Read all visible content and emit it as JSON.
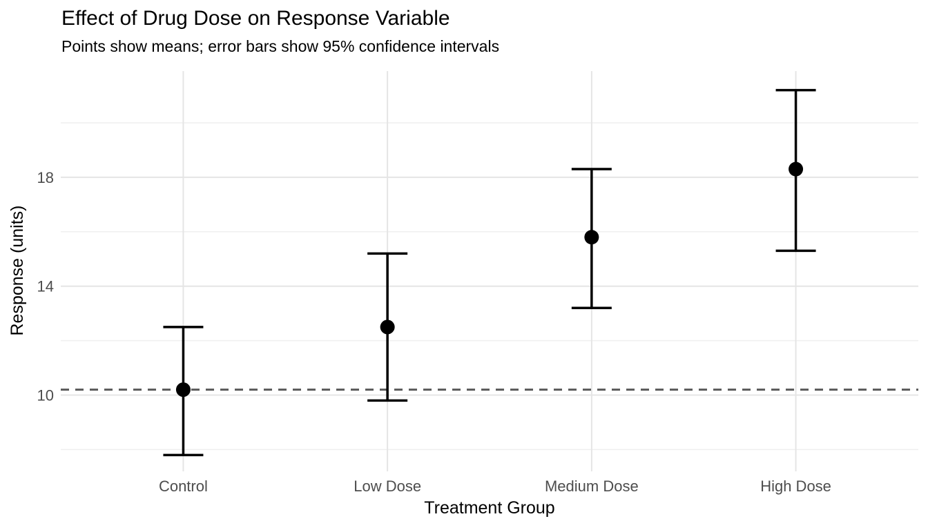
{
  "chart_data": {
    "type": "scatter",
    "title": "Effect of Drug Dose on Response Variable",
    "subtitle": "Points show means; error bars show 95% confidence intervals",
    "xlabel": "Treatment Group",
    "ylabel": "Response (units)",
    "categories": [
      "Control",
      "Low Dose",
      "Medium Dose",
      "High Dose"
    ],
    "series": [
      {
        "name": "mean",
        "values": [
          10.2,
          12.5,
          15.8,
          18.3
        ]
      },
      {
        "name": "ci_lower",
        "values": [
          7.8,
          9.8,
          13.2,
          15.3
        ]
      },
      {
        "name": "ci_upper",
        "values": [
          12.5,
          15.2,
          18.3,
          21.2
        ]
      }
    ],
    "reference_line": {
      "y": 10.2,
      "linetype": "dashed",
      "color": "#595959"
    },
    "ylim": [
      7.2,
      21.9
    ],
    "yticks_major": [
      10,
      14,
      18
    ],
    "yticks_minor": [
      8,
      12,
      16,
      20
    ],
    "grid": true,
    "legend": "none",
    "style": {
      "point_color": "#000000",
      "errorbar_color": "#000000",
      "grid_major_color": "#e5e5e5",
      "grid_minor_color": "#efefef",
      "axis_text_color": "#4d4d4d",
      "background": "#ffffff"
    }
  }
}
